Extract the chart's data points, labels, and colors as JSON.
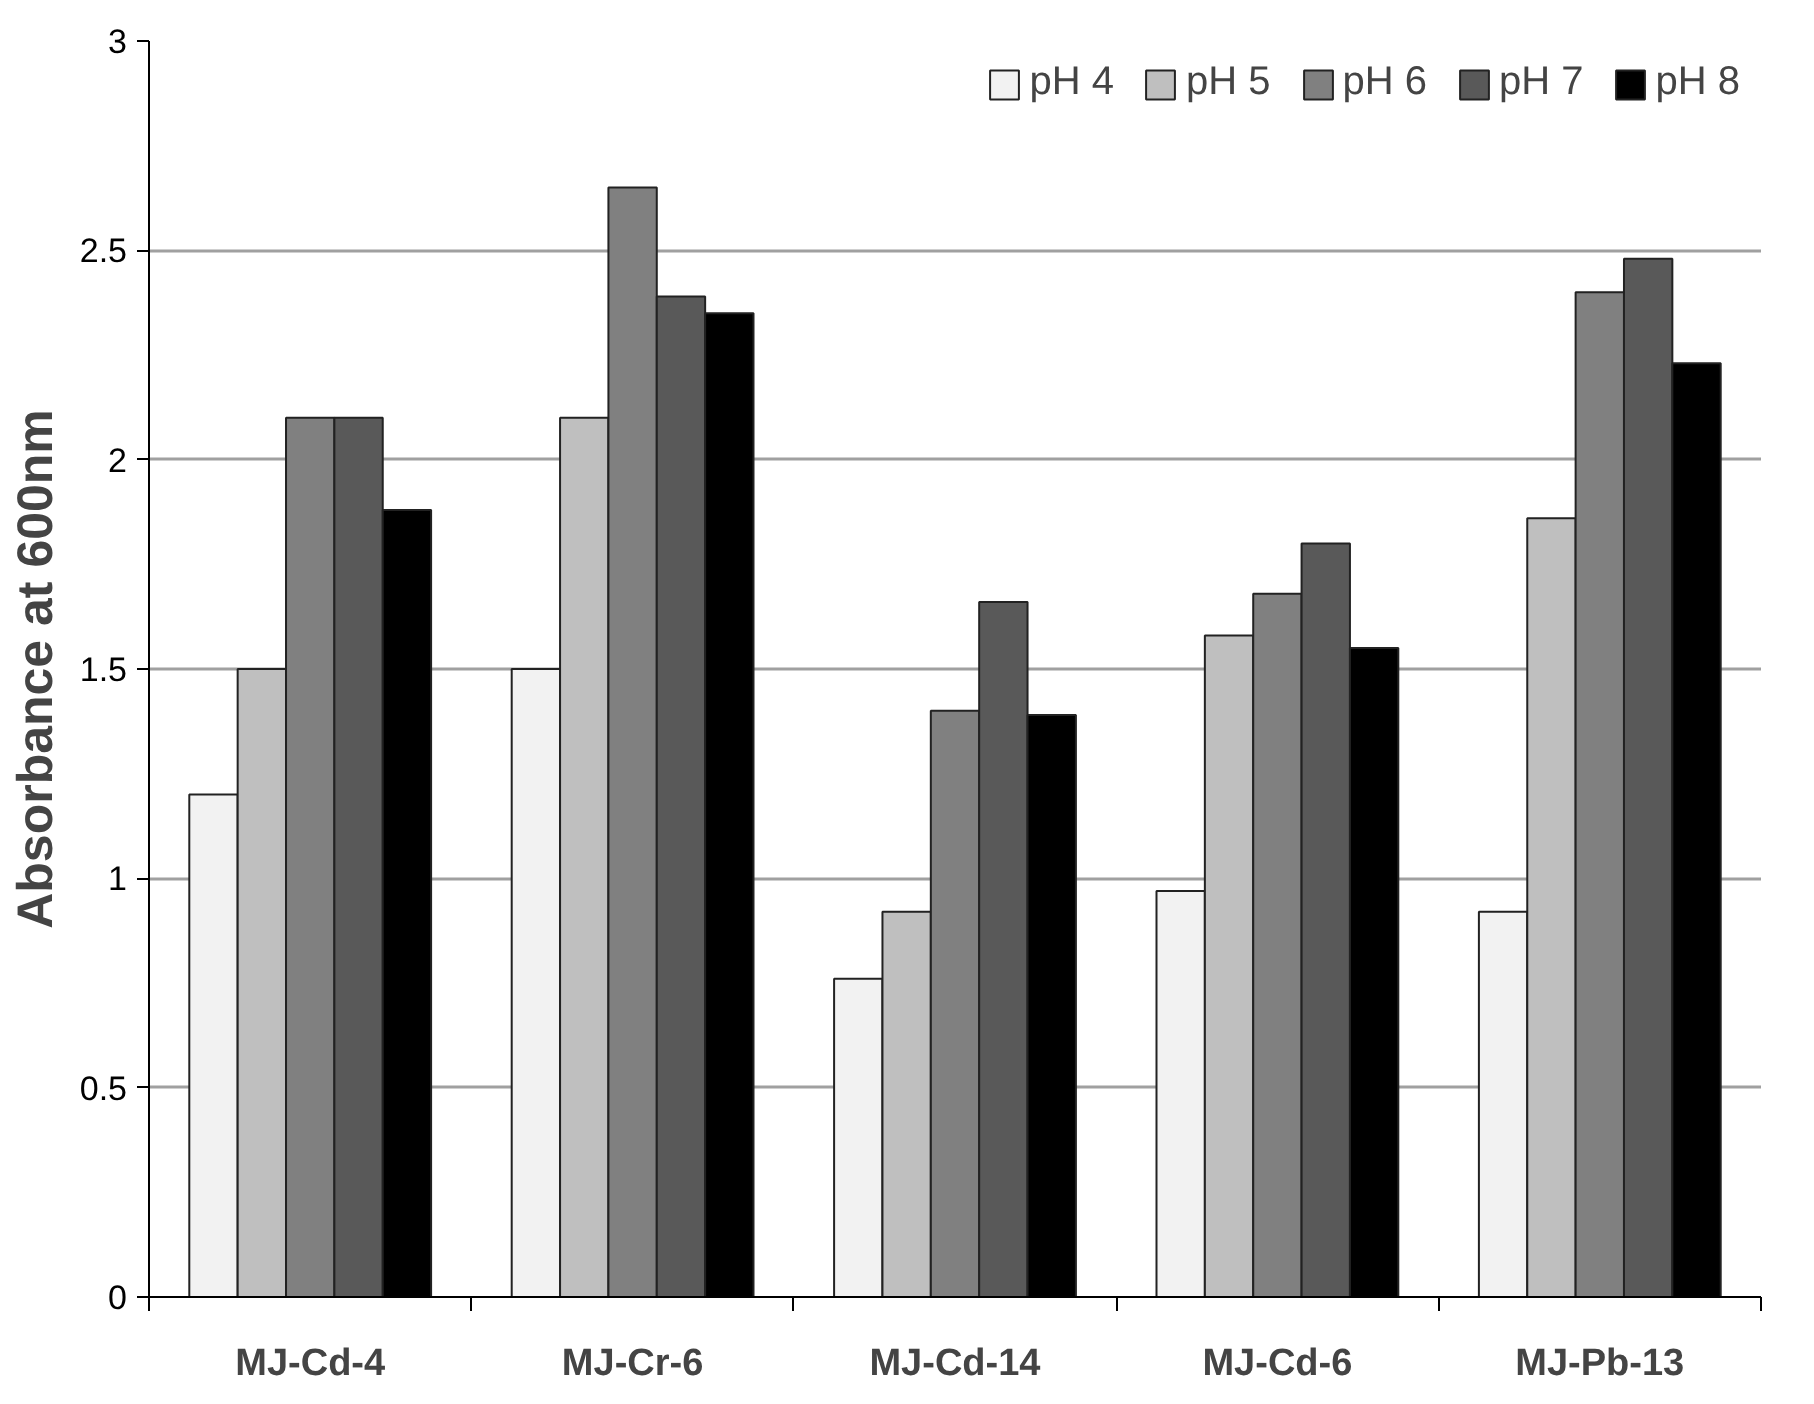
{
  "chart_data": {
    "type": "bar",
    "ylabel": "Absorbance at 600nm",
    "categories": [
      "MJ-Cd-4",
      "MJ-Cr-6",
      "MJ-Cd-14",
      "MJ-Cd-6",
      "MJ-Pb-13"
    ],
    "series": [
      {
        "name": "pH 4",
        "color": "#f2f2f2",
        "values": [
          1.2,
          1.5,
          0.76,
          0.97,
          0.92
        ]
      },
      {
        "name": "pH 5",
        "color": "#bfbfbf",
        "values": [
          1.5,
          2.1,
          0.92,
          1.58,
          1.86
        ]
      },
      {
        "name": "pH 6",
        "color": "#808080",
        "values": [
          2.1,
          2.65,
          1.4,
          1.68,
          2.4
        ]
      },
      {
        "name": "pH 7",
        "color": "#595959",
        "values": [
          2.1,
          2.39,
          1.66,
          1.8,
          2.48
        ]
      },
      {
        "name": "pH 8",
        "color": "#000000",
        "values": [
          1.88,
          2.35,
          1.39,
          1.55,
          2.23
        ]
      }
    ],
    "ylim": [
      0,
      3
    ],
    "yticks": [
      0,
      0.5,
      1,
      1.5,
      2,
      2.5,
      3
    ],
    "grid": "y",
    "legend": "top right"
  }
}
